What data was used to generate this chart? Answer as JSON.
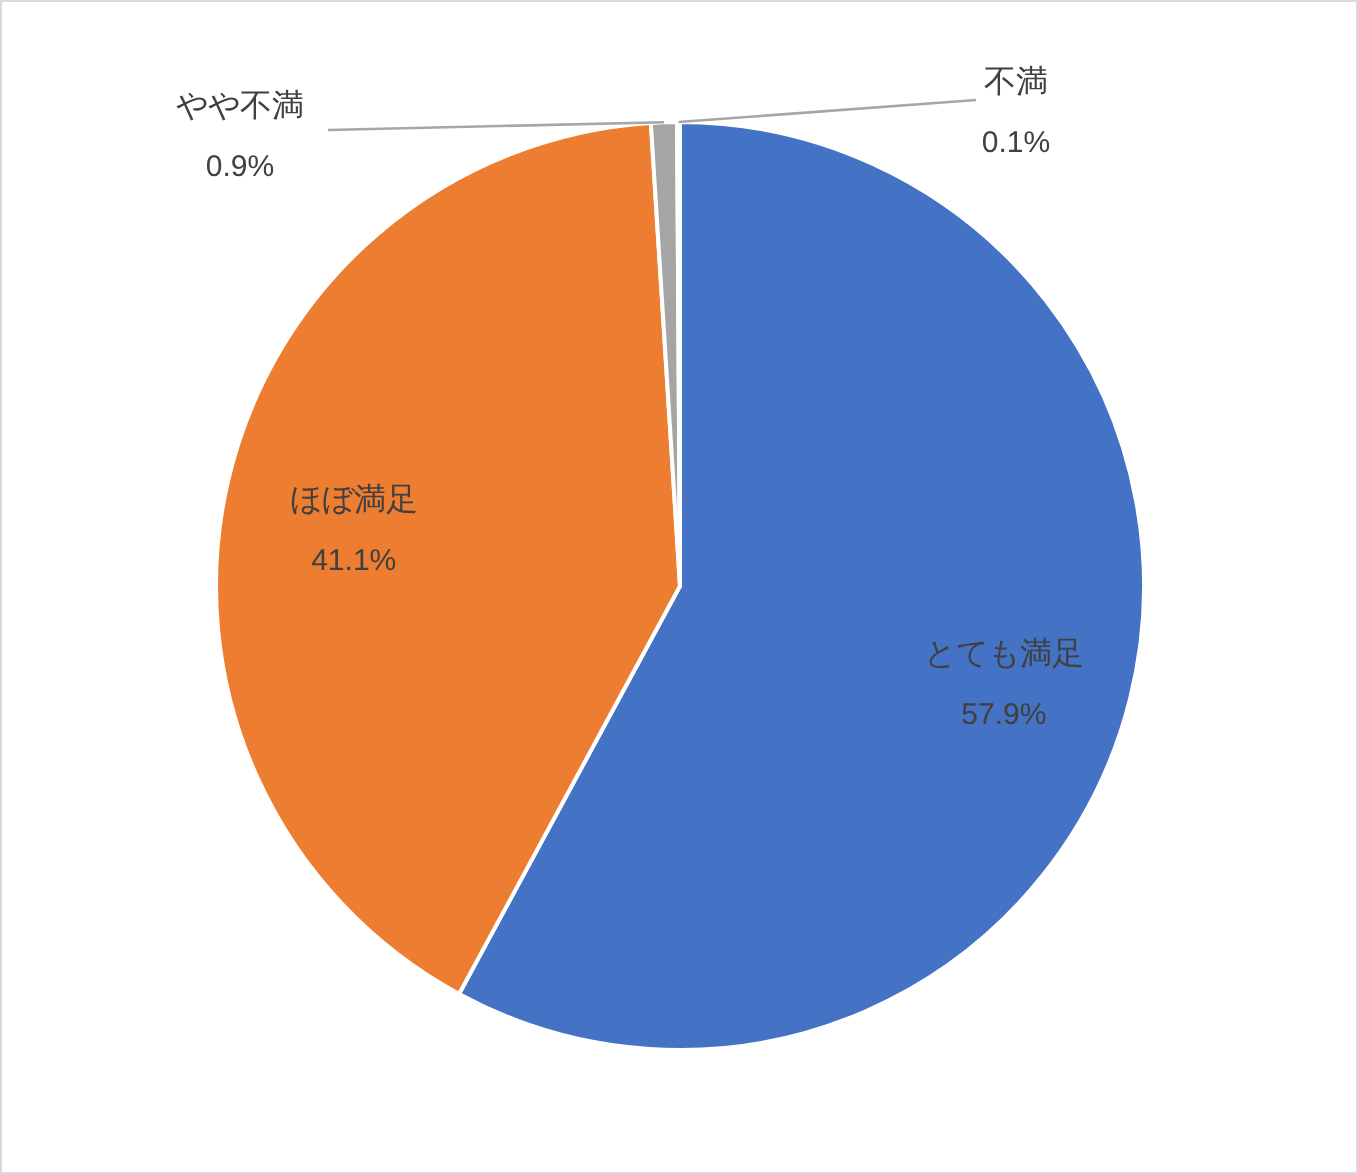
{
  "chart_data": {
    "type": "pie",
    "categories": [
      "とても満足",
      "ほぼ満足",
      "やや不満",
      "不満"
    ],
    "values": [
      57.9,
      41.1,
      0.9,
      0.1
    ],
    "colors": [
      "#4472c4",
      "#ed7d31",
      "#a5a5a5",
      "#ffc000"
    ],
    "value_labels": [
      "57.9%",
      "41.1%",
      "0.9%",
      "0.1%"
    ]
  }
}
